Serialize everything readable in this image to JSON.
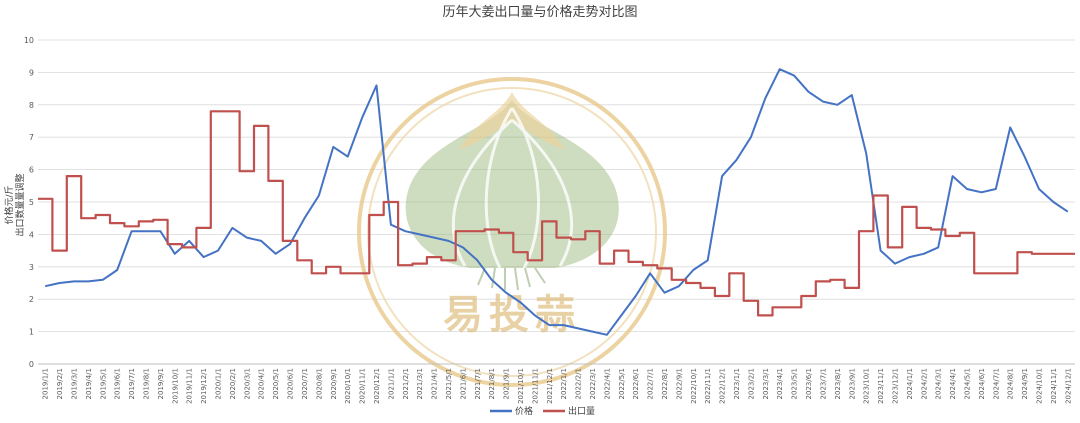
{
  "chart_data": {
    "type": "line",
    "title": "历年大姜出口量与价格走势对比图",
    "ylabel_line1": "价格元/斤",
    "ylabel_line2": "出口数量量调整",
    "xlabel": "",
    "ylim": [
      0,
      10
    ],
    "yticks": [
      "0",
      "1",
      "2",
      "3",
      "4",
      "5",
      "6",
      "7",
      "8",
      "9",
      "10"
    ],
    "grid": true,
    "legend_position": "bottom",
    "x_categories": [
      "2019/1/1",
      "2019/2/1",
      "2019/3/1",
      "2019/4/1",
      "2019/5/1",
      "2019/6/1",
      "2019/7/1",
      "2019/8/1",
      "2019/9/1",
      "2019/10/1",
      "2019/11/1",
      "2019/12/1",
      "2020/1/1",
      "2020/2/1",
      "2020/3/1",
      "2020/4/1",
      "2020/5/1",
      "2020/6/1",
      "2020/7/1",
      "2020/8/1",
      "2020/9/1",
      "2020/10/1",
      "2020/11/1",
      "2020/12/1",
      "2021/1/1",
      "2021/2/1",
      "2021/3/1",
      "2021/4/1",
      "2021/5/1",
      "2021/6/1",
      "2021/7/1",
      "2021/8/1",
      "2021/9/1",
      "2021/10/1",
      "2021/11/1",
      "2021/12/1",
      "2022/1/1",
      "2022/2/1",
      "2022/3/1",
      "2022/4/1",
      "2022/5/1",
      "2022/6/1",
      "2022/7/1",
      "2022/8/1",
      "2022/9/1",
      "2022/10/1",
      "2022/11/1",
      "2022/12/1",
      "2023/1/1",
      "2023/2/1",
      "2023/3/1",
      "2023/4/1",
      "2023/5/1",
      "2023/6/1",
      "2023/7/1",
      "2023/8/1",
      "2023/9/1",
      "2023/10/1",
      "2023/11/1",
      "2023/12/1",
      "2024/1/1",
      "2024/2/1",
      "2024/3/1",
      "2024/4/1",
      "2024/5/1",
      "2024/6/1",
      "2024/7/1",
      "2024/8/1",
      "2024/9/1",
      "2024/10/1",
      "2024/11/1",
      "2024/12/1"
    ],
    "series": [
      {
        "name": "价格",
        "color": "#4472c4",
        "style": "line",
        "values": [
          2.4,
          2.5,
          2.55,
          2.55,
          2.6,
          2.9,
          4.1,
          4.1,
          4.1,
          3.4,
          3.8,
          3.3,
          3.5,
          4.2,
          3.9,
          3.8,
          3.4,
          3.7,
          4.5,
          5.2,
          6.7,
          6.4,
          7.6,
          8.6,
          4.3,
          4.1,
          4.0,
          3.9,
          3.8,
          3.6,
          3.2,
          2.6,
          2.2,
          1.9,
          1.5,
          1.2,
          1.2,
          1.1,
          1.0,
          0.9,
          1.5,
          2.1,
          2.8,
          2.2,
          2.4,
          2.9,
          3.2,
          5.8,
          6.3,
          7.0,
          8.2,
          9.1,
          8.9,
          8.4,
          8.1,
          8.0,
          8.3,
          6.5,
          3.5,
          3.1,
          3.3,
          3.4,
          3.6,
          5.8,
          5.4,
          5.3,
          5.4,
          7.3,
          6.4,
          5.4,
          5.0,
          4.7
        ]
      },
      {
        "name": "出口量",
        "color": "#c0504d",
        "style": "step",
        "values": [
          5.1,
          3.5,
          5.8,
          4.5,
          4.6,
          4.35,
          4.25,
          4.4,
          4.45,
          3.7,
          3.6,
          4.2,
          7.8,
          7.8,
          5.95,
          7.35,
          5.65,
          3.8,
          3.2,
          2.8,
          3.0,
          2.8,
          2.8,
          4.6,
          5.0,
          3.05,
          3.1,
          3.3,
          3.2,
          4.1,
          4.1,
          4.15,
          4.05,
          3.45,
          3.2,
          4.4,
          3.9,
          3.85,
          4.1,
          3.1,
          3.5,
          3.15,
          3.05,
          2.95,
          2.6,
          2.5,
          2.35,
          2.1,
          2.8,
          1.95,
          1.5,
          1.75,
          1.75,
          2.1,
          2.55,
          2.6,
          2.35,
          4.1,
          5.2,
          3.6,
          4.85,
          4.2,
          4.15,
          3.95,
          4.05,
          2.8,
          2.8,
          2.8,
          3.45,
          3.4,
          3.4,
          3.4
        ]
      }
    ],
    "watermark_text": "易投蒜"
  }
}
